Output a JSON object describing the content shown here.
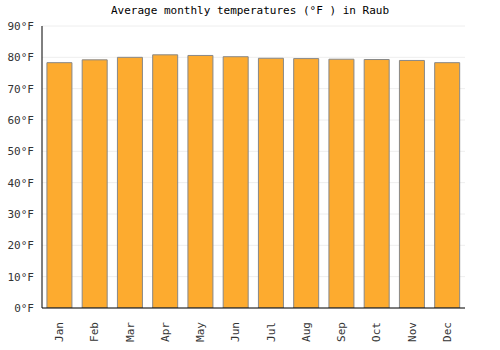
{
  "chart_data": {
    "type": "bar",
    "title": "Average monthly temperatures (°F ) in Raub",
    "categories": [
      "Jan",
      "Feb",
      "Mar",
      "Apr",
      "May",
      "Jun",
      "Jul",
      "Aug",
      "Sep",
      "Oct",
      "Nov",
      "Dec"
    ],
    "values": [
      78.3,
      79.2,
      80.0,
      80.8,
      80.6,
      80.2,
      79.7,
      79.6,
      79.4,
      79.3,
      79.0,
      78.3
    ],
    "color": "#fdab2f",
    "ylim": [
      0,
      90
    ],
    "yticks": [
      {
        "value": 0,
        "label": "0°F"
      },
      {
        "value": 10,
        "label": "10°F"
      },
      {
        "value": 20,
        "label": "20°F"
      },
      {
        "value": 30,
        "label": "30°F"
      },
      {
        "value": 40,
        "label": "40°F"
      },
      {
        "value": 50,
        "label": "50°F"
      },
      {
        "value": 60,
        "label": "60°F"
      },
      {
        "value": 70,
        "label": "70°F"
      },
      {
        "value": 80,
        "label": "80°F"
      },
      {
        "value": 90,
        "label": "90°F"
      }
    ],
    "grid": true
  }
}
